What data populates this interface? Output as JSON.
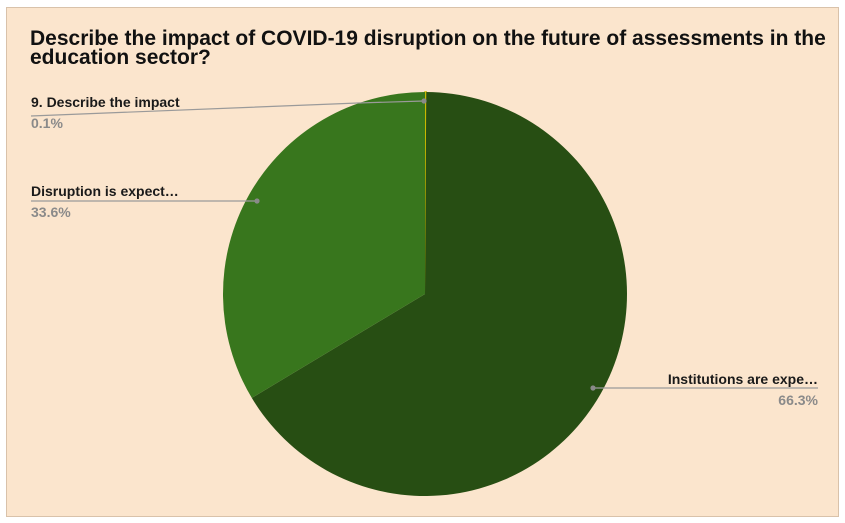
{
  "chart_data": {
    "type": "pie",
    "title": "Describe the impact of COVID-19 disruption on the future of assessments in the education sector?",
    "slices": [
      {
        "label": "9. Describe the impact",
        "percent_label": "0.1%",
        "value": 0.1,
        "color": "#c9b800"
      },
      {
        "label": "Institutions are expe…",
        "percent_label": "66.3%",
        "value": 66.3,
        "color": "#274e13"
      },
      {
        "label": "Disruption is expect…",
        "percent_label": "33.6%",
        "value": 33.6,
        "color": "#38761d"
      }
    ],
    "start_angle_deg": 0,
    "direction": "clockwise",
    "background": "#fbe5cd",
    "legend": "none (callout labels)"
  }
}
